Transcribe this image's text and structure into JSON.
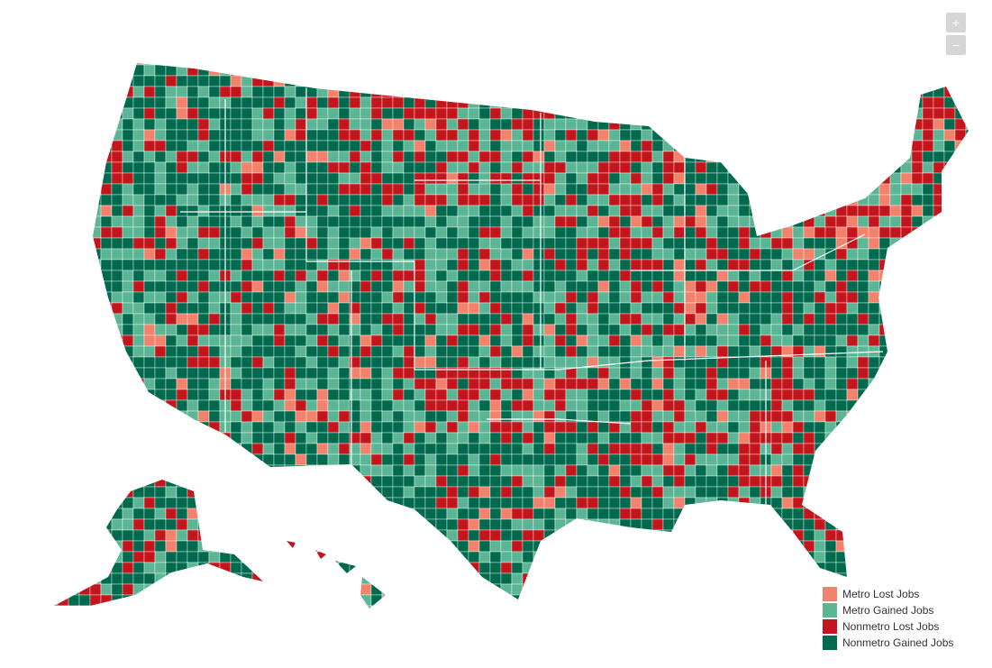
{
  "zoom": {
    "in": "+",
    "out": "−"
  },
  "legend": {
    "items": [
      {
        "label": "Metro Lost Jobs",
        "color": "#f2826c"
      },
      {
        "label": "Metro Gained Jobs",
        "color": "#5cb594"
      },
      {
        "label": "Nonmetro Lost Jobs",
        "color": "#c3161c"
      },
      {
        "label": "Nonmetro Gained Jobs",
        "color": "#006a4e"
      }
    ]
  }
}
